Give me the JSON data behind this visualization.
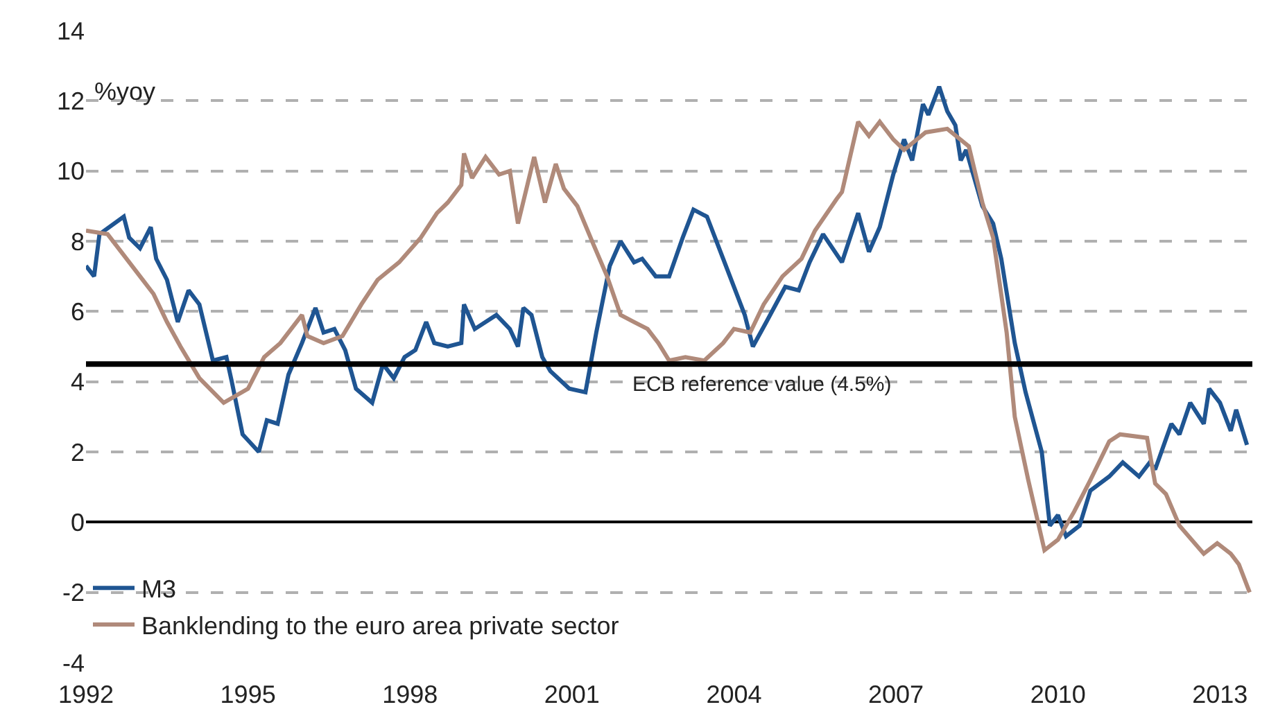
{
  "chart_data": {
    "type": "line",
    "ylabel": "%yoy",
    "xlim": [
      1992,
      2013.6
    ],
    "xticks": [
      1992,
      1995,
      1998,
      2001,
      2004,
      2007,
      2010,
      2013
    ],
    "ylim": [
      -4,
      14
    ],
    "yticks": [
      -4,
      -2,
      0,
      2,
      4,
      6,
      8,
      10,
      12,
      14
    ],
    "grid": "y",
    "legend": "bottom left",
    "line_style": "solid",
    "marker": "none",
    "ref_lines": [
      {
        "axis": "y",
        "value": 4.5,
        "label": "ECB reference value (4.5%)",
        "color": "#000000"
      }
    ],
    "series": [
      {
        "name": "M3",
        "color": "#1f5592",
        "x": [
          1992.0,
          1992.15,
          1992.25,
          1992.7,
          1992.8,
          1993.0,
          1993.2,
          1993.3,
          1993.5,
          1993.7,
          1993.9,
          1994.1,
          1994.35,
          1994.6,
          1994.7,
          1994.9,
          1995.2,
          1995.35,
          1995.55,
          1995.75,
          1996.0,
          1996.25,
          1996.4,
          1996.6,
          1996.8,
          1997.0,
          1997.3,
          1997.5,
          1997.7,
          1997.9,
          1998.1,
          1998.3,
          1998.45,
          1998.7,
          1998.95,
          1999.0,
          1999.2,
          1999.6,
          1999.85,
          2000.0,
          2000.1,
          2000.25,
          2000.45,
          2000.6,
          2000.95,
          2001.25,
          2001.45,
          2001.7,
          2001.9,
          2002.15,
          2002.3,
          2002.55,
          2002.8,
          2003.05,
          2003.25,
          2003.5,
          2003.8,
          2004.0,
          2004.2,
          2004.35,
          2004.6,
          2004.95,
          2005.2,
          2005.4,
          2005.65,
          2006.0,
          2006.3,
          2006.5,
          2006.7,
          2006.95,
          2007.15,
          2007.3,
          2007.5,
          2007.6,
          2007.8,
          2007.95,
          2008.1,
          2008.2,
          2008.3,
          2008.6,
          2008.8,
          2008.95,
          2009.2,
          2009.4,
          2009.7,
          2009.85,
          2010.0,
          2010.15,
          2010.4,
          2010.6,
          2010.95,
          2011.2,
          2011.5,
          2011.7,
          2011.8,
          2012.1,
          2012.25,
          2012.45,
          2012.7,
          2012.8,
          2013.0,
          2013.2,
          2013.3,
          2013.5
        ],
        "values": [
          7.3,
          7.0,
          8.2,
          8.7,
          8.1,
          7.8,
          8.4,
          7.5,
          6.9,
          5.7,
          6.6,
          6.2,
          4.6,
          4.7,
          4.0,
          2.5,
          2.0,
          2.9,
          2.8,
          4.2,
          5.1,
          6.1,
          5.4,
          5.5,
          4.9,
          3.8,
          3.4,
          4.5,
          4.1,
          4.7,
          4.9,
          5.7,
          5.1,
          5.0,
          5.1,
          6.2,
          5.5,
          5.9,
          5.5,
          5.0,
          6.1,
          5.9,
          4.7,
          4.3,
          3.8,
          3.7,
          5.4,
          7.3,
          8.0,
          7.4,
          7.5,
          7.0,
          7.0,
          8.1,
          8.9,
          8.7,
          7.5,
          6.7,
          5.9,
          5.0,
          5.7,
          6.7,
          6.6,
          7.4,
          8.2,
          7.4,
          8.8,
          7.7,
          8.4,
          9.9,
          10.9,
          10.3,
          11.9,
          11.6,
          12.4,
          11.7,
          11.3,
          10.3,
          10.6,
          9.0,
          8.5,
          7.5,
          5.1,
          3.7,
          2.0,
          -0.1,
          0.2,
          -0.4,
          -0.1,
          0.9,
          1.3,
          1.7,
          1.3,
          1.7,
          1.5,
          2.8,
          2.5,
          3.4,
          2.8,
          3.8,
          3.4,
          2.6,
          3.2,
          2.2
        ]
      },
      {
        "name": "Banklending to the euro area private sector",
        "color": "#b08a7a",
        "x": [
          1992.0,
          1992.4,
          1992.65,
          1993.0,
          1993.25,
          1993.5,
          1993.75,
          1994.1,
          1994.55,
          1995.0,
          1995.3,
          1995.6,
          1996.0,
          1996.1,
          1996.4,
          1996.75,
          1997.1,
          1997.4,
          1997.8,
          1998.2,
          1998.5,
          1998.7,
          1998.95,
          1999.0,
          1999.15,
          1999.4,
          1999.65,
          1999.85,
          2000.0,
          2000.3,
          2000.5,
          2000.7,
          2000.85,
          2001.1,
          2001.4,
          2001.65,
          2001.9,
          2002.15,
          2002.4,
          2002.6,
          2002.8,
          2003.1,
          2003.45,
          2003.8,
          2004.0,
          2004.3,
          2004.55,
          2004.9,
          2005.25,
          2005.5,
          2005.9,
          2006.0,
          2006.3,
          2006.5,
          2006.7,
          2006.95,
          2007.15,
          2007.55,
          2007.95,
          2008.35,
          2008.6,
          2008.8,
          2009.05,
          2009.2,
          2009.45,
          2009.75,
          2010.0,
          2010.3,
          2010.6,
          2010.95,
          2011.15,
          2011.65,
          2011.8,
          2012.0,
          2012.25,
          2012.7,
          2012.95,
          2013.2,
          2013.35,
          2013.55
        ],
        "values": [
          8.3,
          8.2,
          7.7,
          7.0,
          6.5,
          5.7,
          5.0,
          4.1,
          3.4,
          3.8,
          4.7,
          5.1,
          5.9,
          5.3,
          5.1,
          5.3,
          6.2,
          6.9,
          7.4,
          8.1,
          8.8,
          9.1,
          9.6,
          10.5,
          9.8,
          10.4,
          9.9,
          10.0,
          8.5,
          10.4,
          9.1,
          10.2,
          9.5,
          9.0,
          7.9,
          7.0,
          5.9,
          5.7,
          5.5,
          5.1,
          4.6,
          4.7,
          4.6,
          5.1,
          5.5,
          5.4,
          6.2,
          7.0,
          7.5,
          8.3,
          9.2,
          9.4,
          11.4,
          11.0,
          11.4,
          10.9,
          10.6,
          11.1,
          11.2,
          10.7,
          9.1,
          8.1,
          5.4,
          3.0,
          1.2,
          -0.8,
          -0.5,
          0.3,
          1.2,
          2.3,
          2.5,
          2.4,
          1.1,
          0.8,
          -0.1,
          -0.9,
          -0.6,
          -0.9,
          -1.2,
          -2.0
        ]
      }
    ]
  }
}
